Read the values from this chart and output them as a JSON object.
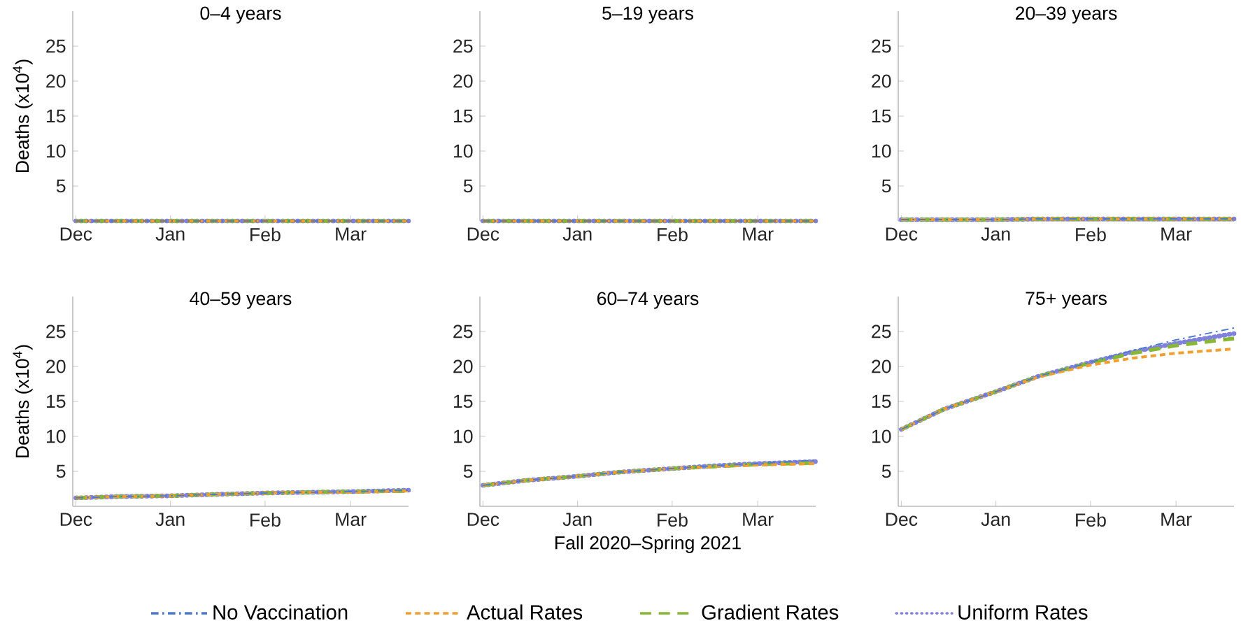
{
  "chart_data": [
    {
      "type": "line",
      "title": "0–4 years",
      "ylabel": "Deaths (x10$^{4}$)",
      "x": [
        "2020-12-01",
        "2020-12-15",
        "2021-01-01",
        "2021-01-15",
        "2021-02-01",
        "2021-02-15",
        "2021-03-01",
        "2021-03-20"
      ],
      "series": [
        {
          "color": "#4a7cc9",
          "line_style": "dashdot",
          "values": [
            0,
            0,
            0,
            0,
            0,
            0,
            0,
            0
          ]
        },
        {
          "color": "#f0a030",
          "line_style": "dashed",
          "values": [
            0,
            0,
            0,
            0,
            0,
            0,
            0,
            0
          ]
        },
        {
          "color": "#86b835",
          "line_style": "long dashed",
          "values": [
            0,
            0,
            0,
            0,
            0,
            0,
            0,
            0
          ]
        },
        {
          "color": "#8080dd",
          "line_style": "dotted",
          "values": [
            0,
            0,
            0,
            0,
            0,
            0,
            0,
            0
          ]
        }
      ],
      "xlim": [
        "2020-11-30",
        "2021-03-20"
      ],
      "xticks": [
        {
          "value": "2020-12-01",
          "label": "Dec"
        },
        {
          "value": "2021-01-01",
          "label": "Jan"
        },
        {
          "value": "2021-02-01",
          "label": "Feb"
        },
        {
          "value": "2021-03-01",
          "label": "Mar"
        }
      ],
      "ylim": [
        0,
        30
      ],
      "yticks": [
        5,
        10,
        15,
        20,
        25
      ],
      "grid": false,
      "legend": false
    },
    {
      "type": "line",
      "title": "5–19 years",
      "x": [
        "2020-12-01",
        "2020-12-15",
        "2021-01-01",
        "2021-01-15",
        "2021-02-01",
        "2021-02-15",
        "2021-03-01",
        "2021-03-20"
      ],
      "series": [
        {
          "color": "#4a7cc9",
          "line_style": "dashdot",
          "values": [
            0,
            0,
            0,
            0,
            0,
            0,
            0,
            0
          ]
        },
        {
          "color": "#f0a030",
          "line_style": "dashed",
          "values": [
            0,
            0,
            0,
            0,
            0,
            0,
            0,
            0
          ]
        },
        {
          "color": "#86b835",
          "line_style": "long dashed",
          "values": [
            0,
            0,
            0,
            0,
            0,
            0,
            0,
            0
          ]
        },
        {
          "color": "#8080dd",
          "line_style": "dotted",
          "values": [
            0,
            0,
            0,
            0,
            0,
            0,
            0,
            0
          ]
        }
      ],
      "xlim": [
        "2020-11-30",
        "2021-03-20"
      ],
      "xticks": [
        {
          "value": "2020-12-01",
          "label": "Dec"
        },
        {
          "value": "2021-01-01",
          "label": "Jan"
        },
        {
          "value": "2021-02-01",
          "label": "Feb"
        },
        {
          "value": "2021-03-01",
          "label": "Mar"
        }
      ],
      "ylim": [
        0,
        30
      ],
      "yticks": [
        5,
        10,
        15,
        20,
        25
      ],
      "grid": false,
      "legend": false
    },
    {
      "type": "line",
      "title": "20–39 years",
      "x": [
        "2020-12-01",
        "2020-12-15",
        "2021-01-01",
        "2021-01-15",
        "2021-02-01",
        "2021-02-15",
        "2021-03-01",
        "2021-03-20"
      ],
      "series": [
        {
          "color": "#4a7cc9",
          "line_style": "dashdot",
          "values": [
            0.2,
            0.2,
            0.2,
            0.3,
            0.3,
            0.3,
            0.3,
            0.3
          ]
        },
        {
          "color": "#f0a030",
          "line_style": "dashed",
          "values": [
            0.2,
            0.2,
            0.2,
            0.3,
            0.3,
            0.3,
            0.3,
            0.3
          ]
        },
        {
          "color": "#86b835",
          "line_style": "long dashed",
          "values": [
            0.2,
            0.2,
            0.2,
            0.3,
            0.3,
            0.3,
            0.3,
            0.3
          ]
        },
        {
          "color": "#8080dd",
          "line_style": "dotted",
          "values": [
            0.2,
            0.2,
            0.2,
            0.3,
            0.3,
            0.3,
            0.3,
            0.3
          ]
        }
      ],
      "xlim": [
        "2020-11-30",
        "2021-03-20"
      ],
      "xticks": [
        {
          "value": "2020-12-01",
          "label": "Dec"
        },
        {
          "value": "2021-01-01",
          "label": "Jan"
        },
        {
          "value": "2021-02-01",
          "label": "Feb"
        },
        {
          "value": "2021-03-01",
          "label": "Mar"
        }
      ],
      "ylim": [
        0,
        30
      ],
      "yticks": [
        5,
        10,
        15,
        20,
        25
      ],
      "grid": false,
      "legend": false
    },
    {
      "type": "line",
      "title": "40–59 years",
      "ylabel": "Deaths (x10$^{4}$)",
      "x": [
        "2020-12-01",
        "2020-12-15",
        "2021-01-01",
        "2021-01-15",
        "2021-02-01",
        "2021-02-15",
        "2021-03-01",
        "2021-03-20"
      ],
      "series": [
        {
          "color": "#4a7cc9",
          "line_style": "dashdot",
          "values": [
            1.2,
            1.4,
            1.5,
            1.7,
            1.9,
            2.0,
            2.1,
            2.3
          ]
        },
        {
          "color": "#f0a030",
          "line_style": "dashed",
          "values": [
            1.2,
            1.4,
            1.5,
            1.7,
            1.9,
            2.0,
            2.0,
            2.2
          ]
        },
        {
          "color": "#86b835",
          "line_style": "long dashed",
          "values": [
            1.2,
            1.4,
            1.5,
            1.7,
            1.9,
            2.0,
            2.1,
            2.2
          ]
        },
        {
          "color": "#8080dd",
          "line_style": "dotted",
          "values": [
            1.2,
            1.4,
            1.5,
            1.7,
            1.9,
            2.0,
            2.1,
            2.3
          ]
        }
      ],
      "xlim": [
        "2020-11-30",
        "2021-03-20"
      ],
      "xticks": [
        {
          "value": "2020-12-01",
          "label": "Dec"
        },
        {
          "value": "2021-01-01",
          "label": "Jan"
        },
        {
          "value": "2021-02-01",
          "label": "Feb"
        },
        {
          "value": "2021-03-01",
          "label": "Mar"
        }
      ],
      "ylim": [
        0,
        30
      ],
      "yticks": [
        5,
        10,
        15,
        20,
        25
      ],
      "grid": false,
      "legend": false
    },
    {
      "type": "line",
      "title": "60–74 years",
      "xlabel": "Fall 2020–Spring 2021",
      "x": [
        "2020-12-01",
        "2020-12-15",
        "2021-01-01",
        "2021-01-15",
        "2021-02-01",
        "2021-02-15",
        "2021-03-01",
        "2021-03-20"
      ],
      "series": [
        {
          "name": "No Vaccination",
          "color": "#4a7cc9",
          "line_style": "dashdot",
          "values": [
            3.0,
            3.7,
            4.3,
            4.9,
            5.4,
            5.8,
            6.1,
            6.6
          ]
        },
        {
          "name": "Actual Rates",
          "color": "#f0a030",
          "line_style": "dashed",
          "values": [
            3.0,
            3.7,
            4.3,
            4.9,
            5.4,
            5.7,
            5.9,
            6.1
          ]
        },
        {
          "name": "Gradient Rates",
          "color": "#86b835",
          "line_style": "long dashed",
          "values": [
            3.0,
            3.7,
            4.3,
            4.9,
            5.4,
            5.7,
            6.0,
            6.2
          ]
        },
        {
          "name": "Uniform Rates",
          "color": "#8080dd",
          "line_style": "dotted",
          "values": [
            3.0,
            3.7,
            4.3,
            4.9,
            5.4,
            5.8,
            6.1,
            6.4
          ]
        }
      ],
      "xlim": [
        "2020-11-30",
        "2021-03-20"
      ],
      "xticks": [
        {
          "value": "2020-12-01",
          "label": "Dec"
        },
        {
          "value": "2021-01-01",
          "label": "Jan"
        },
        {
          "value": "2021-02-01",
          "label": "Feb"
        },
        {
          "value": "2021-03-01",
          "label": "Mar"
        }
      ],
      "ylim": [
        0,
        30
      ],
      "yticks": [
        5,
        10,
        15,
        20,
        25
      ],
      "grid": false,
      "legend": "bottom"
    },
    {
      "type": "line",
      "title": "75+ years",
      "x": [
        "2020-12-01",
        "2020-12-15",
        "2021-01-01",
        "2021-01-15",
        "2021-02-01",
        "2021-02-15",
        "2021-03-01",
        "2021-03-20"
      ],
      "series": [
        {
          "color": "#4a7cc9",
          "line_style": "dashdot",
          "values": [
            11,
            13.9,
            16.4,
            18.6,
            20.6,
            22.3,
            23.8,
            25.5
          ]
        },
        {
          "color": "#f0a030",
          "line_style": "dashed",
          "values": [
            11,
            13.9,
            16.4,
            18.5,
            20.2,
            21.2,
            21.9,
            22.5
          ]
        },
        {
          "color": "#86b835",
          "line_style": "long dashed",
          "values": [
            11,
            13.9,
            16.4,
            18.6,
            20.5,
            21.9,
            23.0,
            24.0
          ]
        },
        {
          "color": "#8080dd",
          "line_style": "dotted",
          "values": [
            11,
            13.9,
            16.4,
            18.6,
            20.6,
            22.1,
            23.3,
            24.7
          ]
        }
      ],
      "xlim": [
        "2020-11-30",
        "2021-03-20"
      ],
      "xticks": [
        {
          "value": "2020-12-01",
          "label": "Dec"
        },
        {
          "value": "2021-01-01",
          "label": "Jan"
        },
        {
          "value": "2021-02-01",
          "label": "Feb"
        },
        {
          "value": "2021-03-01",
          "label": "Mar"
        }
      ],
      "ylim": [
        0,
        30
      ],
      "yticks": [
        5,
        10,
        15,
        20,
        25
      ],
      "grid": false,
      "legend": false
    }
  ]
}
